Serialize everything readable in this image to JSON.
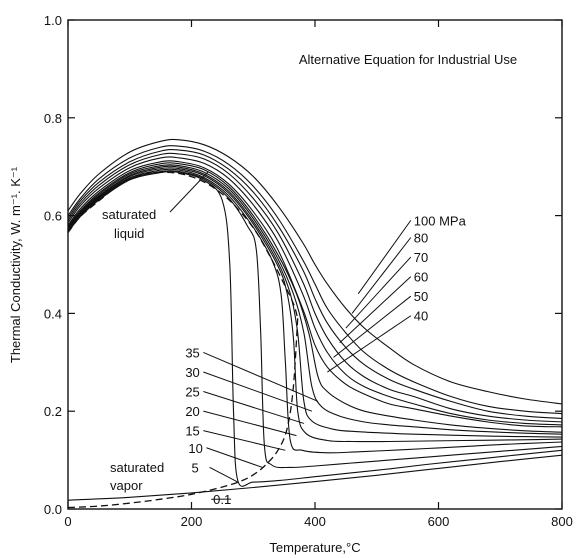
{
  "chart_data": {
    "type": "line",
    "title": "Alternative Equation for Industrial Use",
    "xlabel": "Temperature,°C",
    "ylabel": "Thermal Conductivity, W. m⁻¹. K⁻¹",
    "xlim": [
      0,
      800
    ],
    "ylim": [
      0,
      1.0
    ],
    "x_ticks": [
      0,
      200,
      400,
      600,
      800
    ],
    "x_tick_labels": [
      "0",
      "200",
      "400",
      "600",
      "800"
    ],
    "y_ticks": [
      0,
      0.2,
      0.4,
      0.6,
      0.8,
      1.0
    ],
    "y_tick_labels": [
      "0.0",
      "0.2",
      "0.4",
      "0.6",
      "0.8",
      "1.0"
    ],
    "grid": false,
    "series": [
      {
        "name": "100 MPa",
        "label_text": "100 MPa",
        "label_at": [
          560,
          0.58
        ],
        "pointer_to": [
          470,
          0.44
        ],
        "x": [
          0,
          20,
          50,
          100,
          150,
          180,
          220,
          260,
          300,
          340,
          380,
          400,
          420,
          450,
          480,
          520,
          560,
          620,
          680,
          740,
          800
        ],
        "y": [
          0.61,
          0.645,
          0.685,
          0.73,
          0.752,
          0.755,
          0.745,
          0.72,
          0.68,
          0.62,
          0.545,
          0.5,
          0.46,
          0.41,
          0.37,
          0.33,
          0.295,
          0.26,
          0.24,
          0.225,
          0.215
        ]
      },
      {
        "name": "80",
        "label_text": "80",
        "label_at": [
          560,
          0.545
        ],
        "pointer_to": [
          460,
          0.4
        ],
        "x": [
          0,
          20,
          50,
          100,
          150,
          180,
          220,
          260,
          300,
          340,
          380,
          400,
          420,
          450,
          480,
          520,
          560,
          620,
          680,
          740,
          800
        ],
        "y": [
          0.6,
          0.635,
          0.675,
          0.718,
          0.74,
          0.742,
          0.732,
          0.705,
          0.66,
          0.595,
          0.51,
          0.46,
          0.41,
          0.36,
          0.32,
          0.285,
          0.26,
          0.23,
          0.21,
          0.2,
          0.195
        ]
      },
      {
        "name": "70",
        "label_text": "70",
        "label_at": [
          560,
          0.505
        ],
        "pointer_to": [
          450,
          0.37
        ],
        "x": [
          0,
          20,
          50,
          100,
          150,
          180,
          220,
          260,
          300,
          340,
          380,
          400,
          420,
          450,
          480,
          520,
          560,
          620,
          680,
          740,
          800
        ],
        "y": [
          0.595,
          0.63,
          0.668,
          0.71,
          0.732,
          0.734,
          0.724,
          0.695,
          0.648,
          0.58,
          0.49,
          0.43,
          0.38,
          0.33,
          0.295,
          0.265,
          0.245,
          0.22,
          0.2,
          0.19,
          0.185
        ]
      },
      {
        "name": "60",
        "label_text": "60",
        "label_at": [
          560,
          0.465
        ],
        "pointer_to": [
          440,
          0.34
        ],
        "x": [
          0,
          20,
          50,
          100,
          150,
          180,
          220,
          260,
          300,
          340,
          380,
          400,
          420,
          450,
          480,
          520,
          560,
          620,
          680,
          740,
          800
        ],
        "y": [
          0.59,
          0.625,
          0.662,
          0.704,
          0.725,
          0.726,
          0.716,
          0.686,
          0.635,
          0.565,
          0.465,
          0.4,
          0.35,
          0.3,
          0.27,
          0.245,
          0.23,
          0.205,
          0.19,
          0.182,
          0.178
        ]
      },
      {
        "name": "50",
        "label_text": "50",
        "label_at": [
          560,
          0.425
        ],
        "pointer_to": [
          430,
          0.31
        ],
        "x": [
          0,
          20,
          50,
          100,
          150,
          180,
          220,
          260,
          300,
          340,
          380,
          400,
          420,
          450,
          480,
          520,
          560,
          620,
          680,
          740,
          800
        ],
        "y": [
          0.585,
          0.62,
          0.656,
          0.698,
          0.718,
          0.718,
          0.707,
          0.676,
          0.622,
          0.548,
          0.44,
          0.37,
          0.32,
          0.275,
          0.25,
          0.23,
          0.215,
          0.195,
          0.182,
          0.175,
          0.172
        ]
      },
      {
        "name": "40",
        "label_text": "40",
        "label_at": [
          560,
          0.385
        ],
        "pointer_to": [
          420,
          0.28
        ],
        "x": [
          0,
          20,
          50,
          100,
          150,
          180,
          220,
          260,
          300,
          340,
          380,
          400,
          420,
          450,
          480,
          520,
          560,
          620,
          680,
          740,
          800
        ],
        "y": [
          0.58,
          0.614,
          0.65,
          0.692,
          0.71,
          0.71,
          0.698,
          0.665,
          0.608,
          0.53,
          0.41,
          0.335,
          0.29,
          0.255,
          0.235,
          0.215,
          0.205,
          0.19,
          0.178,
          0.17,
          0.168
        ]
      },
      {
        "name": "35",
        "label_text": "35",
        "label_at": [
          190,
          0.31
        ],
        "pointer_to": [
          405,
          0.22
        ],
        "x": [
          0,
          20,
          50,
          100,
          150,
          180,
          220,
          260,
          300,
          340,
          370,
          390,
          405,
          420,
          450,
          480,
          520,
          560,
          620,
          680,
          740,
          800
        ],
        "y": [
          0.578,
          0.61,
          0.646,
          0.688,
          0.706,
          0.706,
          0.694,
          0.66,
          0.6,
          0.52,
          0.44,
          0.36,
          0.27,
          0.24,
          0.215,
          0.2,
          0.19,
          0.182,
          0.172,
          0.165,
          0.16,
          0.157
        ]
      },
      {
        "name": "30",
        "label_text": "30",
        "label_at": [
          190,
          0.27
        ],
        "pointer_to": [
          395,
          0.2
        ],
        "x": [
          0,
          20,
          50,
          100,
          150,
          180,
          220,
          260,
          300,
          340,
          365,
          382,
          395,
          410,
          440,
          480,
          520,
          560,
          620,
          680,
          740,
          800
        ],
        "y": [
          0.575,
          0.607,
          0.643,
          0.685,
          0.702,
          0.702,
          0.689,
          0.655,
          0.594,
          0.512,
          0.44,
          0.36,
          0.25,
          0.21,
          0.19,
          0.178,
          0.172,
          0.168,
          0.162,
          0.158,
          0.155,
          0.153
        ]
      },
      {
        "name": "25",
        "label_text": "25",
        "label_at": [
          190,
          0.23
        ],
        "pointer_to": [
          382,
          0.175
        ],
        "x": [
          0,
          20,
          50,
          100,
          150,
          180,
          220,
          260,
          300,
          340,
          360,
          372,
          382,
          395,
          430,
          470,
          520,
          560,
          620,
          680,
          740,
          800
        ],
        "y": [
          0.573,
          0.605,
          0.64,
          0.682,
          0.699,
          0.699,
          0.685,
          0.65,
          0.588,
          0.504,
          0.44,
          0.36,
          0.22,
          0.18,
          0.163,
          0.158,
          0.155,
          0.153,
          0.151,
          0.149,
          0.148,
          0.147
        ]
      },
      {
        "name": "20",
        "label_text": "20",
        "label_at": [
          190,
          0.19
        ],
        "pointer_to": [
          370,
          0.15
        ],
        "x": [
          0,
          20,
          50,
          100,
          150,
          180,
          220,
          260,
          300,
          340,
          355,
          365,
          372,
          385,
          420,
          460,
          520,
          580,
          640,
          700,
          760,
          800
        ],
        "y": [
          0.571,
          0.603,
          0.638,
          0.68,
          0.696,
          0.696,
          0.682,
          0.646,
          0.583,
          0.497,
          0.44,
          0.35,
          0.2,
          0.155,
          0.14,
          0.138,
          0.138,
          0.139,
          0.14,
          0.141,
          0.142,
          0.143
        ]
      },
      {
        "name": "15",
        "label_text": "15",
        "label_at": [
          190,
          0.15
        ],
        "pointer_to": [
          352,
          0.12
        ],
        "x": [
          0,
          20,
          50,
          100,
          150,
          180,
          220,
          260,
          300,
          330,
          345,
          352,
          360,
          380,
          420,
          470,
          540,
          600,
          660,
          720,
          780,
          800
        ],
        "y": [
          0.57,
          0.601,
          0.636,
          0.677,
          0.693,
          0.693,
          0.678,
          0.641,
          0.576,
          0.51,
          0.44,
          0.3,
          0.14,
          0.12,
          0.115,
          0.117,
          0.121,
          0.125,
          0.129,
          0.133,
          0.136,
          0.137
        ]
      },
      {
        "name": "10",
        "label_text": "10",
        "label_at": [
          195,
          0.115
        ],
        "pointer_to": [
          315,
          0.085
        ],
        "x": [
          0,
          20,
          50,
          100,
          150,
          180,
          220,
          260,
          290,
          305,
          312,
          318,
          330,
          360,
          400,
          460,
          520,
          580,
          640,
          700,
          760,
          800
        ],
        "y": [
          0.568,
          0.6,
          0.634,
          0.675,
          0.69,
          0.69,
          0.675,
          0.636,
          0.58,
          0.53,
          0.36,
          0.13,
          0.09,
          0.085,
          0.088,
          0.094,
          0.1,
          0.106,
          0.112,
          0.118,
          0.124,
          0.128
        ]
      },
      {
        "name": "5",
        "label_text": "5",
        "label_at": [
          200,
          0.075
        ],
        "pointer_to": [
          275,
          0.055
        ],
        "x": [
          0,
          20,
          50,
          100,
          150,
          180,
          220,
          250,
          262,
          268,
          275,
          300,
          340,
          400,
          460,
          520,
          580,
          640,
          700,
          760,
          800
        ],
        "y": [
          0.566,
          0.598,
          0.632,
          0.673,
          0.688,
          0.688,
          0.672,
          0.63,
          0.5,
          0.2,
          0.058,
          0.055,
          0.058,
          0.066,
          0.074,
          0.082,
          0.091,
          0.099,
          0.107,
          0.115,
          0.12
        ]
      },
      {
        "name": "0.1",
        "label_text": "0.1",
        "label_at": [
          235,
          0.01
        ],
        "pointer_to": [
          232,
          0.02
        ],
        "x": [
          0,
          100,
          200,
          300,
          400,
          500,
          600,
          700,
          800
        ],
        "y": [
          0.018,
          0.024,
          0.033,
          0.044,
          0.056,
          0.069,
          0.083,
          0.097,
          0.11
        ]
      },
      {
        "name": "saturated liquid",
        "dashed": true,
        "label_text": "saturated liquid",
        "x": [
          0,
          20,
          50,
          80,
          110,
          140,
          180,
          220,
          260,
          300,
          330,
          350,
          365,
          372
        ],
        "y": [
          0.565,
          0.598,
          0.63,
          0.66,
          0.68,
          0.688,
          0.686,
          0.669,
          0.633,
          0.575,
          0.51,
          0.46,
          0.42,
          0.39
        ]
      },
      {
        "name": "saturated vapor",
        "dashed": true,
        "label_text": "saturated vapor",
        "x": [
          0,
          50,
          100,
          150,
          200,
          250,
          280,
          300,
          320,
          340,
          355,
          365,
          372
        ],
        "y": [
          0.003,
          0.006,
          0.012,
          0.02,
          0.03,
          0.045,
          0.057,
          0.07,
          0.09,
          0.12,
          0.165,
          0.25,
          0.39
        ]
      }
    ]
  },
  "annotations": {
    "sat_liquid_line1": "saturated",
    "sat_liquid_line2": "liquid",
    "sat_vapor_line1": "saturated",
    "sat_vapor_line2": "vapor"
  }
}
